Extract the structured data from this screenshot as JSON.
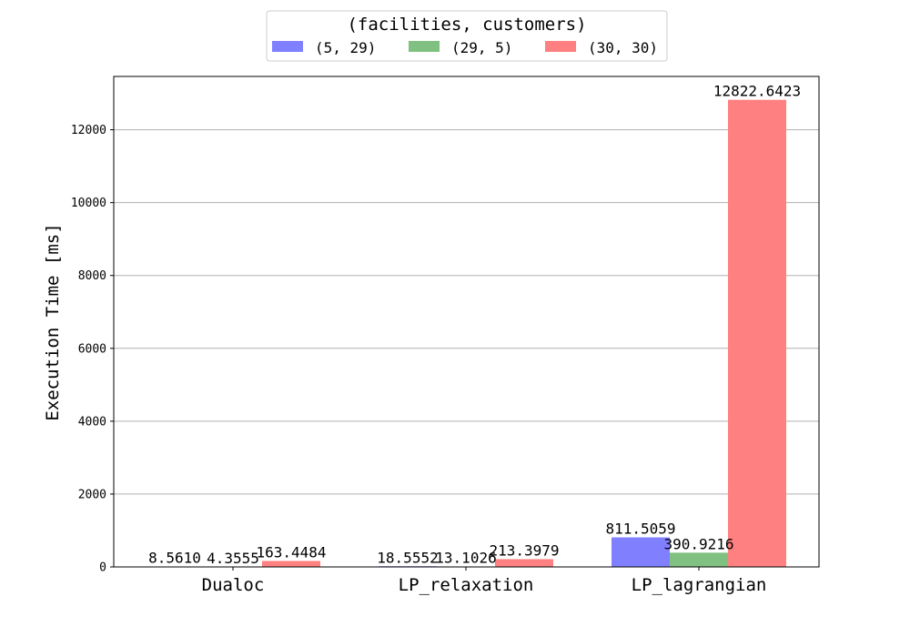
{
  "chart_data": {
    "type": "bar",
    "categories": [
      "Dualoc",
      "LP_relaxation",
      "LP_lagrangian"
    ],
    "series": [
      {
        "name": "(5, 29)",
        "color": "#8080ff",
        "values": [
          8.561,
          18.5552,
          811.5059
        ],
        "labels": [
          "8.5610",
          "18.5552",
          "811.5059"
        ]
      },
      {
        "name": "(29, 5)",
        "color": "#80c080",
        "values": [
          4.3555,
          13.1026,
          390.9216
        ],
        "labels": [
          "4.3555",
          "13.1026",
          "390.9216"
        ]
      },
      {
        "name": "(30, 30)",
        "color": "#ff8080",
        "values": [
          163.4484,
          213.3979,
          12822.6423
        ],
        "labels": [
          "163.4484",
          "213.3979",
          "12822.6423"
        ]
      }
    ],
    "legend_title": "(facilities, customers)",
    "legend_position": "top-center",
    "xlabel": "",
    "ylabel": "Execution Time [ms]",
    "ylim": [
      0,
      13464
    ],
    "yticks": [
      0,
      2000,
      4000,
      6000,
      8000,
      10000,
      12000
    ],
    "grid": "y"
  }
}
